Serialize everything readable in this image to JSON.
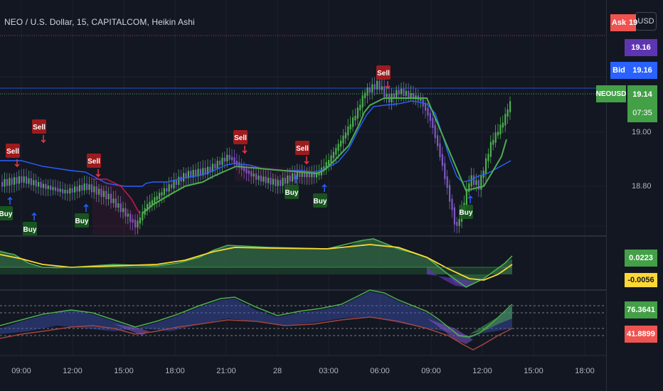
{
  "header": {
    "title": "NEO / U.S. Dollar, 15, CAPITALCOM, Heikin Ashi"
  },
  "scale": {
    "currency_button": "USD"
  },
  "price_tags": {
    "ask_label": "Ask",
    "ask_value": "19",
    "mid_value": "19.16",
    "bid_label": "Bid",
    "bid_value": "19.16",
    "symbol_label": "NEOUSD",
    "last_value": "19.14",
    "countdown": "07:35"
  },
  "price_axis": [
    "19.00",
    "18.80"
  ],
  "indicator_tags": {
    "osc1_a": "0.0223",
    "osc1_b": "-0.0056",
    "osc2_a": "76.3641",
    "osc2_b": "41.8899"
  },
  "time_axis": [
    "09:00",
    "12:00",
    "15:00",
    "18:00",
    "21:00",
    "28",
    "03:00",
    "06:00",
    "09:00",
    "12:00",
    "15:00",
    "18:00"
  ],
  "signals": [
    {
      "text": "Sell",
      "kind": "sell"
    },
    {
      "text": "Sell",
      "kind": "sell"
    },
    {
      "text": "Sell",
      "kind": "sell"
    },
    {
      "text": "Sell",
      "kind": "sell"
    },
    {
      "text": "Sell",
      "kind": "sell"
    },
    {
      "text": "Sell",
      "kind": "sell"
    },
    {
      "text": "Buy",
      "kind": "buy"
    },
    {
      "text": "Buy",
      "kind": "buy"
    },
    {
      "text": "Buy",
      "kind": "buy"
    },
    {
      "text": "Buy",
      "kind": "buy"
    },
    {
      "text": "Buy",
      "kind": "buy"
    },
    {
      "text": "Buy",
      "kind": "buy"
    }
  ],
  "colors": {
    "bg": "#131722",
    "bull": "#4caf50",
    "bear": "#7e57c2",
    "sell": "#b71c1c",
    "buy": "#1b5e20",
    "ask": "#ef5350",
    "bid": "#2962ff",
    "mid": "#5e35b1",
    "last": "#43a047"
  }
}
